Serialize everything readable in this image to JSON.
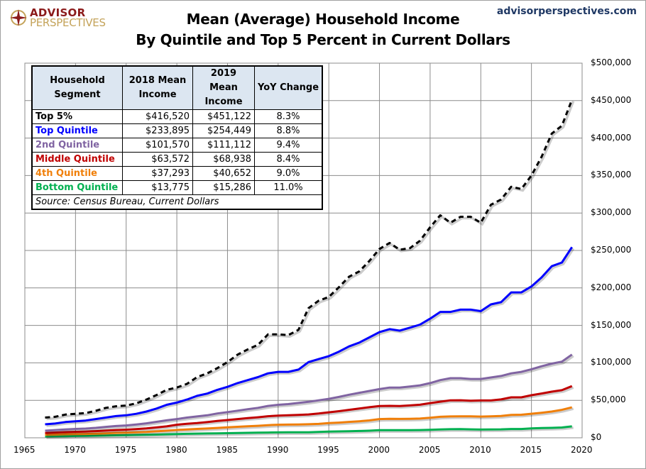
{
  "logo": {
    "line1": "ADVISOR",
    "line2": "PERSPECTIVES"
  },
  "site": "advisorperspectives.com",
  "title_line1": "Mean (Average)  Household Income",
  "title_line2": "By Quintile and Top 5 Percent in Current Dollars",
  "table": {
    "headers": [
      "Household Segment",
      "2018 Mean Income",
      "2019 Mean Income",
      "YoY Change"
    ],
    "rows": [
      {
        "segment": "Top 5%",
        "y2018": "$416,520",
        "y2019": "$451,122",
        "yoy": "8.3%",
        "color": "#000000"
      },
      {
        "segment": "Top Quintile",
        "y2018": "$233,895",
        "y2019": "$254,449",
        "yoy": "8.8%",
        "color": "#0000ff"
      },
      {
        "segment": "2nd Quintile",
        "y2018": "$101,570",
        "y2019": "$111,112",
        "yoy": "9.4%",
        "color": "#8064a2"
      },
      {
        "segment": "Middle Quintile",
        "y2018": "$63,572",
        "y2019": "$68,938",
        "yoy": "8.4%",
        "color": "#c00000"
      },
      {
        "segment": "4th Quintile",
        "y2018": "$37,293",
        "y2019": "$40,652",
        "yoy": "9.0%",
        "color": "#f07f09"
      },
      {
        "segment": "Bottom Quintile",
        "y2018": "$13,775",
        "y2019": "$15,286",
        "yoy": "11.0%",
        "color": "#00b050"
      }
    ],
    "source": "Source: Census Bureau, Current Dollars"
  },
  "chart_data": {
    "type": "line",
    "title": "Mean (Average)  Household Income By Quintile and Top 5 Percent in Current Dollars",
    "xlim": [
      1965,
      2020
    ],
    "ylim": [
      0,
      500000
    ],
    "grid": true,
    "x_ticks": [
      "1965",
      "1970",
      "1975",
      "1980",
      "1985",
      "1990",
      "1995",
      "2000",
      "2005",
      "2010",
      "2015",
      "2020"
    ],
    "y_ticks": [
      "$0",
      "$50,000",
      "$100,000",
      "$150,000",
      "$200,000",
      "$250,000",
      "$300,000",
      "$350,000",
      "$400,000",
      "$450,000",
      "$500,000"
    ],
    "x_start": 1967,
    "series": [
      {
        "name": "Top 5%",
        "color": "#000000",
        "dashed": true,
        "values": [
          27000,
          28000,
          31000,
          32000,
          33000,
          36000,
          40000,
          42000,
          43000,
          46000,
          51000,
          57000,
          64000,
          67000,
          72000,
          81000,
          86000,
          93000,
          101000,
          111000,
          118000,
          124000,
          138000,
          138000,
          137000,
          144000,
          173000,
          183000,
          188000,
          201000,
          215000,
          222000,
          236000,
          252000,
          260000,
          251000,
          253000,
          263000,
          281000,
          297000,
          287000,
          295000,
          295000,
          287000,
          311000,
          318000,
          335000,
          332000,
          350000,
          375000,
          406000,
          416520,
          451122
        ]
      },
      {
        "name": "Top Quintile",
        "color": "#0000ff",
        "values": [
          18000,
          19000,
          21000,
          22000,
          23000,
          25000,
          27000,
          29000,
          30000,
          32000,
          35000,
          39000,
          44000,
          47000,
          51000,
          56000,
          59000,
          64000,
          68000,
          73000,
          77000,
          81000,
          86000,
          88000,
          88000,
          91000,
          101000,
          105000,
          109000,
          115000,
          122000,
          127000,
          134000,
          141000,
          145000,
          143000,
          147000,
          151000,
          159000,
          168000,
          168000,
          171000,
          171000,
          169000,
          178000,
          181000,
          194000,
          194000,
          202000,
          214000,
          229000,
          233895,
          254449
        ]
      },
      {
        "name": "2nd Quintile",
        "color": "#8064a2",
        "values": [
          9500,
          10300,
          11200,
          11800,
          12300,
          13300,
          14600,
          15700,
          16500,
          17800,
          19300,
          21300,
          23300,
          25000,
          27000,
          28500,
          30000,
          32500,
          34300,
          36200,
          38200,
          40000,
          42500,
          44000,
          45000,
          46500,
          48000,
          50000,
          52000,
          54500,
          57500,
          60000,
          62500,
          65000,
          67000,
          67000,
          68500,
          70000,
          73000,
          77000,
          79500,
          79500,
          78500,
          78500,
          80500,
          82500,
          86000,
          88000,
          91500,
          95500,
          99000,
          101570,
          111112
        ]
      },
      {
        "name": "Middle Quintile",
        "color": "#c00000",
        "values": [
          6400,
          7000,
          7600,
          8000,
          8300,
          8900,
          9600,
          10300,
          10800,
          11600,
          12500,
          13800,
          15200,
          17400,
          18700,
          19600,
          20900,
          22400,
          23700,
          25000,
          26200,
          27400,
          28800,
          29600,
          30100,
          30600,
          31200,
          32400,
          34000,
          35500,
          37300,
          39000,
          40800,
          42400,
          42600,
          42400,
          43200,
          44100,
          46300,
          48200,
          50000,
          50100,
          49500,
          49800,
          49800,
          51200,
          54000,
          54000,
          56800,
          59100,
          61600,
          63572,
          68938
        ]
      },
      {
        "name": "4th Quintile",
        "color": "#f07f09",
        "values": [
          3900,
          4300,
          4700,
          4900,
          5100,
          5500,
          6000,
          6500,
          6800,
          7300,
          7800,
          8600,
          9500,
          10400,
          11200,
          11800,
          12400,
          13200,
          14000,
          14700,
          15400,
          16000,
          16900,
          17400,
          17600,
          17800,
          18100,
          18600,
          19600,
          20300,
          21200,
          22100,
          23200,
          25000,
          25300,
          25200,
          25400,
          25700,
          26800,
          28000,
          28500,
          28700,
          28600,
          28300,
          28600,
          29100,
          30500,
          30800,
          32100,
          33400,
          35000,
          37293,
          40652
        ]
      },
      {
        "name": "Bottom Quintile",
        "color": "#00b050",
        "values": [
          1800,
          2000,
          2200,
          2500,
          2600,
          2800,
          3000,
          3300,
          3500,
          3800,
          4000,
          4300,
          4600,
          5000,
          5300,
          5600,
          5800,
          6000,
          6200,
          6400,
          6600,
          6800,
          7000,
          7200,
          7300,
          7300,
          7400,
          7800,
          8300,
          8500,
          8800,
          9100,
          9500,
          10100,
          10200,
          10100,
          10200,
          10300,
          10700,
          11200,
          11500,
          11600,
          11300,
          11000,
          11200,
          11300,
          11700,
          11700,
          12500,
          13000,
          13300,
          13775,
          15286
        ]
      }
    ]
  }
}
